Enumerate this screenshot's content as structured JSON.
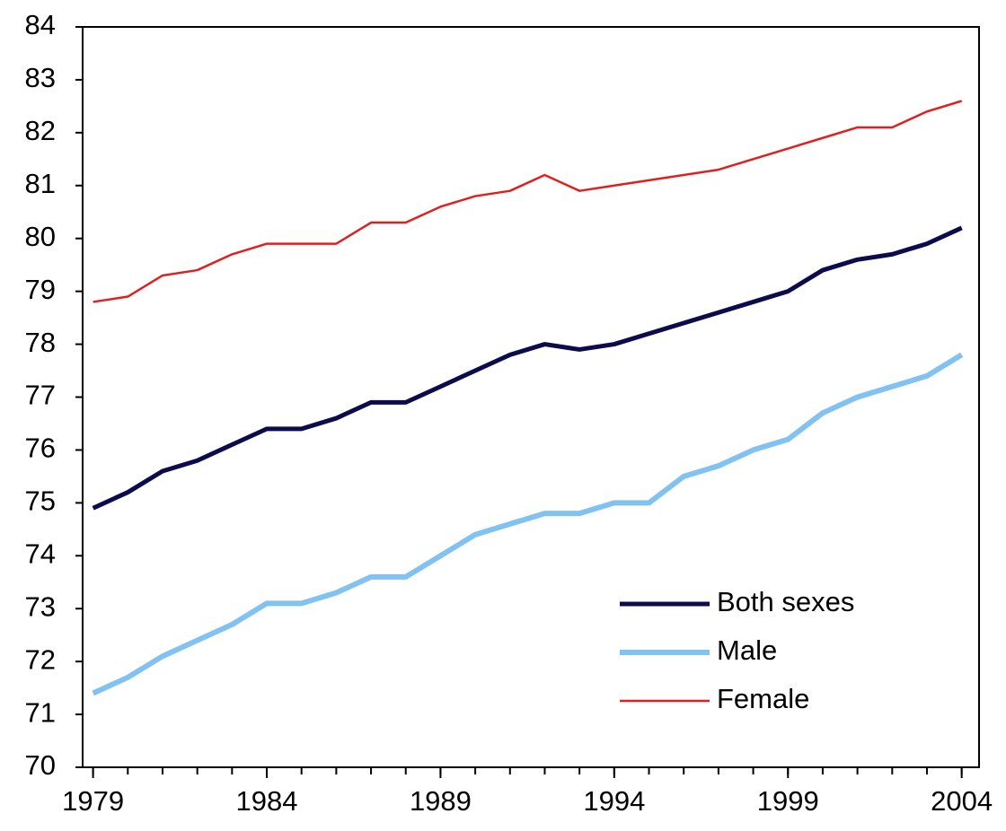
{
  "chart_data": {
    "type": "line",
    "x": [
      1979,
      1980,
      1981,
      1982,
      1983,
      1984,
      1985,
      1986,
      1987,
      1988,
      1989,
      1990,
      1991,
      1992,
      1993,
      1994,
      1995,
      1996,
      1997,
      1998,
      1999,
      2000,
      2001,
      2002,
      2003,
      2004
    ],
    "series": [
      {
        "name": "Both sexes",
        "color": "#0c0c4c",
        "values": [
          74.9,
          75.2,
          75.6,
          75.8,
          76.1,
          76.4,
          76.4,
          76.6,
          76.9,
          76.9,
          77.2,
          77.5,
          77.8,
          78.0,
          77.9,
          78.0,
          78.2,
          78.4,
          78.6,
          78.8,
          79.0,
          79.4,
          79.6,
          79.7,
          79.9,
          80.2
        ]
      },
      {
        "name": "Male",
        "color": "#82c2f2",
        "values": [
          71.4,
          71.7,
          72.1,
          72.4,
          72.7,
          73.1,
          73.1,
          73.3,
          73.6,
          73.6,
          74.0,
          74.4,
          74.6,
          74.8,
          74.8,
          75.0,
          75.0,
          75.5,
          75.7,
          76.0,
          76.2,
          76.7,
          77.0,
          77.2,
          77.4,
          77.8
        ]
      },
      {
        "name": "Female",
        "color": "#e02020",
        "values": [
          78.8,
          78.9,
          79.3,
          79.4,
          79.7,
          79.9,
          79.9,
          79.9,
          80.3,
          80.3,
          80.6,
          80.8,
          80.9,
          81.2,
          80.9,
          81.0,
          81.1,
          81.2,
          81.3,
          81.5,
          81.7,
          81.9,
          82.1,
          82.1,
          82.4,
          82.6
        ]
      }
    ],
    "xlim": [
      1978.7,
      2004.5
    ],
    "xticks": [
      1979,
      1984,
      1989,
      1994,
      1999,
      2004
    ],
    "ylim": [
      70,
      84
    ],
    "yticks": [
      70,
      71,
      72,
      73,
      74,
      75,
      76,
      77,
      78,
      79,
      80,
      81,
      82,
      83,
      84
    ],
    "legend": "lower right"
  }
}
